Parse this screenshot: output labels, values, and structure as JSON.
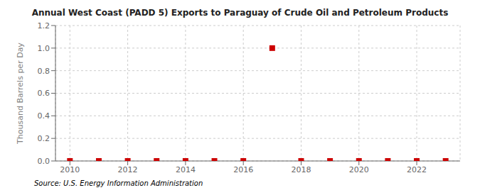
{
  "chart_data": {
    "type": "scatter",
    "title": "Annual West Coast (PADD 5) Exports to Paraguay of Crude Oil and Petroleum Products",
    "y_label": "Thousand Barrels per Day",
    "annotations": [
      "Source: U.S. Energy Information Administration"
    ],
    "x": [
      2010,
      2011,
      2012,
      2013,
      2014,
      2015,
      2016,
      2017,
      2018,
      2019,
      2020,
      2021,
      2022,
      2023
    ],
    "values": [
      0.0,
      0.0,
      0.0,
      0.0,
      0.0,
      0.0,
      0.0,
      1.0,
      0.0,
      0.0,
      0.0,
      0.0,
      0.0,
      0.0
    ],
    "color": "#cc0000",
    "marker": "square",
    "xlim": [
      2009.5,
      2023.5
    ],
    "ylim": [
      0,
      1.2
    ],
    "xticks": [
      2010,
      2012,
      2014,
      2016,
      2018,
      2020,
      2022
    ],
    "yticks": [
      {
        "value": 0,
        "label": "0.0"
      },
      0.2,
      0.4,
      0.6,
      0.8,
      {
        "value": 1,
        "label": "1.0"
      },
      1.2
    ],
    "grid": true
  }
}
